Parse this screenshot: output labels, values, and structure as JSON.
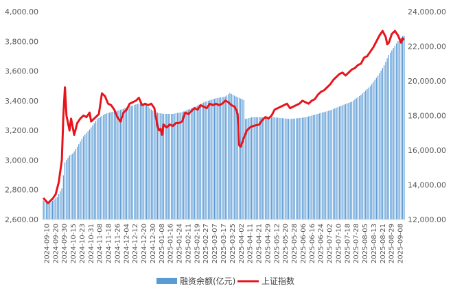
{
  "chart_data": {
    "type": "bar+line",
    "title": "",
    "legend_position": "bottom",
    "grid": false,
    "y_left": {
      "ticks": [
        "2,600.00",
        "2,800.00",
        "3,000.00",
        "3,200.00",
        "3,400.00",
        "3,600.00",
        "3,800.00",
        "4,000.00"
      ],
      "range": [
        2600,
        4000
      ]
    },
    "y_right": {
      "ticks": [
        "12,000.00",
        "14,000.00",
        "16,000.00",
        "18,000.00",
        "20,000.00",
        "22,000.00",
        "24,000.00"
      ],
      "range": [
        12000,
        24000
      ]
    },
    "x_tick_labels": [
      "2024-09-10",
      "2024-09-20",
      "2024-09-30",
      "2024-10-15",
      "2024-10-23",
      "2024-10-31",
      "2024-11-08",
      "2024-11-18",
      "2024-11-26",
      "2024-12-04",
      "2024-12-12",
      "2024-12-20",
      "2024-12-30",
      "2025-01-08",
      "2025-01-16",
      "2025-01-24",
      "2025-02-11",
      "2025-02-19",
      "2025-02-27",
      "2025-03-07",
      "2025-03-17",
      "2025-03-25",
      "2025-04-02",
      "2025-04-11",
      "2025-04-21",
      "2025-04-29",
      "2025-05-12",
      "2025-05-20",
      "2025-05-28",
      "2025-06-06",
      "2025-06-16",
      "2025-06-24",
      "2025-07-02",
      "2025-07-10",
      "2025-07-18",
      "2025-07-28",
      "2025-08-05",
      "2025-08-13",
      "2025-08-21",
      "2025-08-29",
      "2025-09-08"
    ],
    "series": [
      {
        "name": "融资余额(亿元)",
        "type": "bar",
        "axis": "right",
        "color": "#5b9bd5",
        "anchors": [
          [
            0,
            13100
          ],
          [
            5,
            13000
          ],
          [
            9,
            13300
          ],
          [
            12,
            13800
          ],
          [
            14,
            15300
          ],
          [
            17,
            15700
          ],
          [
            19,
            15800
          ],
          [
            22,
            16200
          ],
          [
            26,
            16800
          ],
          [
            30,
            17200
          ],
          [
            35,
            17800
          ],
          [
            40,
            18100
          ],
          [
            44,
            18200
          ],
          [
            49,
            18300
          ],
          [
            55,
            18500
          ],
          [
            62,
            18700
          ],
          [
            66,
            18700
          ],
          [
            68,
            18500
          ],
          [
            72,
            18200
          ],
          [
            78,
            18100
          ],
          [
            84,
            18100
          ],
          [
            90,
            18200
          ],
          [
            98,
            18500
          ],
          [
            105,
            18800
          ],
          [
            112,
            19000
          ],
          [
            118,
            19100
          ],
          [
            121,
            19300
          ],
          [
            125,
            19100
          ],
          [
            130,
            18900
          ],
          [
            131,
            17800
          ],
          [
            135,
            17900
          ],
          [
            140,
            17900
          ],
          [
            150,
            17900
          ],
          [
            160,
            17800
          ],
          [
            170,
            17900
          ],
          [
            178,
            18100
          ],
          [
            186,
            18300
          ],
          [
            194,
            18600
          ],
          [
            200,
            18800
          ],
          [
            206,
            19200
          ],
          [
            212,
            19700
          ],
          [
            217,
            20300
          ],
          [
            221,
            20900
          ],
          [
            224,
            21500
          ],
          [
            227,
            21900
          ],
          [
            230,
            22300
          ],
          [
            233,
            22600
          ]
        ]
      },
      {
        "name": "上证指数",
        "type": "line",
        "axis": "left",
        "color": "#e8141c",
        "anchors": [
          [
            0,
            2745
          ],
          [
            3,
            2710
          ],
          [
            6,
            2740
          ],
          [
            8,
            2770
          ],
          [
            10,
            2850
          ],
          [
            12,
            3000
          ],
          [
            13,
            3300
          ],
          [
            14,
            3490
          ],
          [
            15,
            3300
          ],
          [
            16,
            3250
          ],
          [
            17,
            3200
          ],
          [
            18,
            3280
          ],
          [
            20,
            3170
          ],
          [
            22,
            3250
          ],
          [
            24,
            3280
          ],
          [
            26,
            3300
          ],
          [
            28,
            3290
          ],
          [
            30,
            3320
          ],
          [
            31,
            3260
          ],
          [
            33,
            3280
          ],
          [
            36,
            3310
          ],
          [
            38,
            3450
          ],
          [
            40,
            3430
          ],
          [
            42,
            3380
          ],
          [
            44,
            3370
          ],
          [
            46,
            3340
          ],
          [
            48,
            3290
          ],
          [
            50,
            3260
          ],
          [
            52,
            3320
          ],
          [
            54,
            3340
          ],
          [
            56,
            3380
          ],
          [
            58,
            3390
          ],
          [
            60,
            3400
          ],
          [
            62,
            3420
          ],
          [
            64,
            3370
          ],
          [
            66,
            3380
          ],
          [
            68,
            3370
          ],
          [
            70,
            3380
          ],
          [
            72,
            3350
          ],
          [
            74,
            3230
          ],
          [
            75,
            3200
          ],
          [
            76,
            3210
          ],
          [
            77,
            3170
          ],
          [
            78,
            3240
          ],
          [
            80,
            3220
          ],
          [
            82,
            3240
          ],
          [
            84,
            3230
          ],
          [
            86,
            3250
          ],
          [
            88,
            3250
          ],
          [
            90,
            3260
          ],
          [
            92,
            3320
          ],
          [
            94,
            3310
          ],
          [
            96,
            3330
          ],
          [
            98,
            3350
          ],
          [
            100,
            3340
          ],
          [
            102,
            3370
          ],
          [
            104,
            3360
          ],
          [
            106,
            3350
          ],
          [
            108,
            3380
          ],
          [
            110,
            3370
          ],
          [
            112,
            3380
          ],
          [
            114,
            3370
          ],
          [
            116,
            3380
          ],
          [
            118,
            3400
          ],
          [
            120,
            3390
          ],
          [
            122,
            3370
          ],
          [
            124,
            3360
          ],
          [
            125,
            3340
          ],
          [
            126,
            3310
          ],
          [
            127,
            3100
          ],
          [
            128,
            3090
          ],
          [
            130,
            3150
          ],
          [
            132,
            3200
          ],
          [
            134,
            3220
          ],
          [
            136,
            3230
          ],
          [
            140,
            3240
          ],
          [
            142,
            3270
          ],
          [
            144,
            3290
          ],
          [
            146,
            3280
          ],
          [
            148,
            3300
          ],
          [
            150,
            3340
          ],
          [
            152,
            3350
          ],
          [
            154,
            3360
          ],
          [
            156,
            3370
          ],
          [
            158,
            3380
          ],
          [
            160,
            3350
          ],
          [
            162,
            3360
          ],
          [
            164,
            3370
          ],
          [
            166,
            3380
          ],
          [
            168,
            3400
          ],
          [
            170,
            3390
          ],
          [
            172,
            3380
          ],
          [
            174,
            3400
          ],
          [
            176,
            3410
          ],
          [
            178,
            3440
          ],
          [
            180,
            3460
          ],
          [
            182,
            3470
          ],
          [
            184,
            3490
          ],
          [
            186,
            3510
          ],
          [
            188,
            3540
          ],
          [
            190,
            3560
          ],
          [
            192,
            3580
          ],
          [
            194,
            3590
          ],
          [
            196,
            3570
          ],
          [
            198,
            3590
          ],
          [
            200,
            3610
          ],
          [
            202,
            3620
          ],
          [
            204,
            3640
          ],
          [
            206,
            3650
          ],
          [
            208,
            3690
          ],
          [
            210,
            3700
          ],
          [
            212,
            3730
          ],
          [
            214,
            3760
          ],
          [
            216,
            3800
          ],
          [
            218,
            3840
          ],
          [
            220,
            3870
          ],
          [
            222,
            3830
          ],
          [
            223,
            3780
          ],
          [
            224,
            3790
          ],
          [
            226,
            3850
          ],
          [
            228,
            3870
          ],
          [
            230,
            3840
          ],
          [
            232,
            3790
          ],
          [
            233,
            3820
          ],
          [
            234,
            3810
          ]
        ]
      }
    ]
  }
}
